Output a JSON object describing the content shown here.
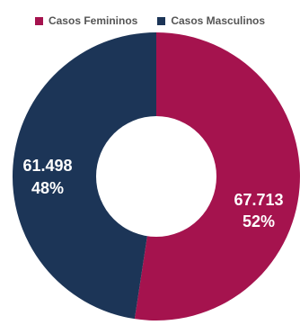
{
  "colors": {
    "feminine": "#A5134E",
    "masculine": "#1C3557",
    "hole": "#ffffff"
  },
  "chart_data": {
    "type": "pie",
    "title": "",
    "legend_position": "top",
    "series": [
      {
        "name": "Casos Femininos",
        "value": 67713,
        "value_label": "67.713",
        "percent_label": "52%"
      },
      {
        "name": "Casos Masculinos",
        "value": 61498,
        "value_label": "61.498",
        "percent_label": "48%"
      }
    ]
  }
}
